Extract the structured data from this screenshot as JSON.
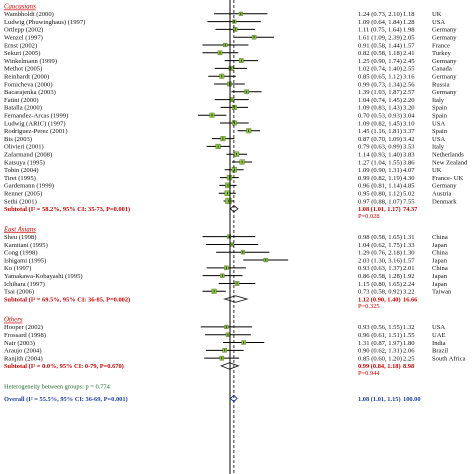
{
  "colors": {
    "header": "#cc0000",
    "subtotal": "#cc0000",
    "heterogeneity": "#1a6b2a",
    "overall": "#1f3fa0",
    "marker": "#8dc63f",
    "line": "#000000"
  },
  "chart_data": {
    "type": "forest",
    "axis": {
      "scale": "log",
      "xlim": [
        0.25,
        4.0
      ],
      "reference": 1.0,
      "summary_line": 1.08
    },
    "groups": [
      {
        "name": "Caucasians",
        "studies": [
          {
            "study": "Wambholdt (2000)",
            "es": 1.24,
            "lo": 0.73,
            "hi": 2.1,
            "ci": "1.24 (0.73, 2.10)",
            "weight": "1.18",
            "country": "UK"
          },
          {
            "study": "Ludwig (Phuwinghaus) (1997)",
            "es": 1.09,
            "lo": 0.64,
            "hi": 1.84,
            "ci": "1.09 (0.64, 1.84)",
            "weight": "1.28",
            "country": "USA"
          },
          {
            "study": "Ortlepp (2002)",
            "es": 1.11,
            "lo": 0.75,
            "hi": 1.64,
            "ci": "1.11 (0.75, 1.64)",
            "weight": "1.98",
            "country": "Germany"
          },
          {
            "study": "Wenzel (1997)",
            "es": 1.61,
            "lo": 1.09,
            "hi": 2.39,
            "ci": "1.61 (1.09, 2.39)",
            "weight": "2.05",
            "country": "Germany"
          },
          {
            "study": "Ernst (2002)",
            "es": 0.91,
            "lo": 0.58,
            "hi": 1.44,
            "ci": "0.91 (0.58, 1.44)",
            "weight": "1.57",
            "country": "France"
          },
          {
            "study": "Sekuri (2005)",
            "es": 0.82,
            "lo": 0.58,
            "hi": 1.18,
            "ci": "0.82 (0.58, 1.18)",
            "weight": "2.41",
            "country": "Turkey"
          },
          {
            "study": "Winkelmann (1999)",
            "es": 1.25,
            "lo": 0.9,
            "hi": 1.74,
            "ci": "1.25 (0.90, 1.74)",
            "weight": "2.45",
            "country": "Germany"
          },
          {
            "study": "Methot (2005)",
            "es": 1.02,
            "lo": 0.74,
            "hi": 1.4,
            "ci": "1.02 (0.74, 1.40)",
            "weight": "2.55",
            "country": "Canada"
          },
          {
            "study": "Reinhardt (2000)",
            "es": 0.85,
            "lo": 0.65,
            "hi": 1.12,
            "ci": "0.85 (0.65, 1.12)",
            "weight": "3.16",
            "country": "Germany"
          },
          {
            "study": "Fomicheva (2000)",
            "es": 0.99,
            "lo": 0.73,
            "hi": 1.34,
            "ci": "0.99 (0.73, 1.34)",
            "weight": "2.56",
            "country": "Russia"
          },
          {
            "study": "Bacarajenka (2003)",
            "es": 1.39,
            "lo": 1.03,
            "hi": 1.87,
            "ci": "1.39 (1.03, 1.87)",
            "weight": "2.57",
            "country": "Germany"
          },
          {
            "study": "Fatini (2000)",
            "es": 1.04,
            "lo": 0.74,
            "hi": 1.45,
            "ci": "1.04 (0.74, 1.45)",
            "weight": "2.20",
            "country": "Italy"
          },
          {
            "study": "Batalla (2000)",
            "es": 1.09,
            "lo": 0.83,
            "hi": 1.43,
            "ci": "1.09 (0.83, 1.43)",
            "weight": "3.20",
            "country": "Spain"
          },
          {
            "study": "Fernandez-Arcas (1999)",
            "es": 0.7,
            "lo": 0.53,
            "hi": 0.93,
            "ci": "0.70 (0.53, 0.93)",
            "weight": "3.04",
            "country": "Spain"
          },
          {
            "study": "Ludwig (ARIC) (1997)",
            "es": 1.09,
            "lo": 0.82,
            "hi": 1.45,
            "ci": "1.09 (0.82, 1.45)",
            "weight": "3.10",
            "country": "USA"
          },
          {
            "study": "Rodriguez-Perez (2001)",
            "es": 1.45,
            "lo": 1.16,
            "hi": 1.81,
            "ci": "1.45 (1.16, 1.81)",
            "weight": "3.37",
            "country": "Spain"
          },
          {
            "study": "Bis (2003)",
            "es": 0.87,
            "lo": 0.7,
            "hi": 1.09,
            "ci": "0.87 (0.70, 1.09)",
            "weight": "3.42",
            "country": "USA"
          },
          {
            "study": "Olivieri (2001)",
            "es": 0.79,
            "lo": 0.63,
            "hi": 0.99,
            "ci": "0.79 (0.63, 0.99)",
            "weight": "3.53",
            "country": "Italy"
          },
          {
            "study": "Zafarmand (2008)",
            "es": 1.14,
            "lo": 0.93,
            "hi": 1.4,
            "ci": "1.14 (0.93, 1.40)",
            "weight": "3.83",
            "country": "Netherlands"
          },
          {
            "study": "Katsuya (1995)",
            "es": 1.27,
            "lo": 1.04,
            "hi": 1.55,
            "ci": "1.27 (1.04, 1.55)",
            "weight": "3.86",
            "country": "New Zealand"
          },
          {
            "study": "Tobin (2004)",
            "es": 1.09,
            "lo": 0.9,
            "hi": 1.31,
            "ci": "1.09 (0.90, 1.31)",
            "weight": "4.07",
            "country": "UK"
          },
          {
            "study": "Tiret (1995)",
            "es": 0.99,
            "lo": 0.82,
            "hi": 1.19,
            "ci": "0.99 (0.82, 1.19)",
            "weight": "4.30",
            "country": "France- UK"
          },
          {
            "study": "Gardemann (1999)",
            "es": 0.96,
            "lo": 0.81,
            "hi": 1.14,
            "ci": "0.96 (0.81, 1.14)",
            "weight": "4.85",
            "country": "Germany"
          },
          {
            "study": "Renner (2005)",
            "es": 0.95,
            "lo": 0.8,
            "hi": 1.12,
            "ci": "0.95 (0.80, 1.12)",
            "weight": "5.02",
            "country": "Austria"
          },
          {
            "study": "Sethi (2001)",
            "es": 0.97,
            "lo": 0.88,
            "hi": 1.07,
            "ci": "0.97 (0.88, 1.07)",
            "weight": "7.55",
            "country": "Denmark"
          }
        ],
        "subtotal": {
          "label": "Subtotal (I² = 58.2%, 95% CI: 35-73, P=0.001)",
          "es": 1.08,
          "lo": 1.01,
          "hi": 1.17,
          "ci": "1.08 (1.01, 1.17)",
          "weight": "74.37",
          "p": "P=0.028"
        }
      },
      {
        "name": "East Asians",
        "studies": [
          {
            "study": "Sheu (1998)",
            "es": 0.98,
            "lo": 0.58,
            "hi": 1.65,
            "ci": "0.98 (0.58, 1.65)",
            "weight": "1.31",
            "country": "China"
          },
          {
            "study": "Kamitani (1995)",
            "es": 1.04,
            "lo": 0.62,
            "hi": 1.75,
            "ci": "1.04 (0.62, 1.75)",
            "weight": "1.33",
            "country": "Japan"
          },
          {
            "study": "Cong (1998)",
            "es": 1.29,
            "lo": 0.76,
            "hi": 2.18,
            "ci": "1.29 (0.76, 2.18)",
            "weight": "1.30",
            "country": "China"
          },
          {
            "study": "Ishigami (1995)",
            "es": 2.03,
            "lo": 1.3,
            "hi": 3.16,
            "ci": "2.03 (1.30, 3.16)",
            "weight": "1.57",
            "country": "Japan"
          },
          {
            "study": "Ko (1997)",
            "es": 0.93,
            "lo": 0.63,
            "hi": 1.37,
            "ci": "0.93 (0.63, 1.37)",
            "weight": "2.01",
            "country": "China"
          },
          {
            "study": "Yamakawa-Kobayashi (1995)",
            "es": 0.86,
            "lo": 0.58,
            "hi": 1.28,
            "ci": "0.86 (0.58, 1.28)",
            "weight": "1.92",
            "country": "Japan"
          },
          {
            "study": "Ichihara (1997)",
            "es": 1.15,
            "lo": 0.8,
            "hi": 1.65,
            "ci": "1.15 (0.80, 1.65)",
            "weight": "2.24",
            "country": "Japan"
          },
          {
            "study": "Tsai (2006)",
            "es": 0.73,
            "lo": 0.58,
            "hi": 0.92,
            "ci": "0.73 (0.58, 0.92)",
            "weight": "3.22",
            "country": "Taiwan"
          }
        ],
        "subtotal": {
          "label": "Subtotal (I² = 69.5%, 95% CI: 36-85, P=0.002)",
          "es": 1.12,
          "lo": 0.9,
          "hi": 1.4,
          "ci": "1.12 (0.90, 1.40)",
          "weight": "16.66",
          "p": "P=0.325"
        }
      },
      {
        "name": "Others",
        "studies": [
          {
            "study": "Hooper (2002)",
            "es": 0.93,
            "lo": 0.56,
            "hi": 1.55,
            "ci": "0.93 (0.56, 1.55)",
            "weight": "1.32",
            "country": "USA"
          },
          {
            "study": "Frossard (1998)",
            "es": 0.96,
            "lo": 0.61,
            "hi": 1.51,
            "ci": "0.96 (0.61, 1.51)",
            "weight": "1.55",
            "country": "UAE"
          },
          {
            "study": "Nair (2003)",
            "es": 1.31,
            "lo": 0.87,
            "hi": 1.97,
            "ci": "1.31 (0.87, 1.97)",
            "weight": "1.80",
            "country": "India"
          },
          {
            "study": "Araujo (2004)",
            "es": 0.9,
            "lo": 0.62,
            "hi": 1.31,
            "ci": "0.90 (0.62, 1.31)",
            "weight": "2.06",
            "country": "Brazil"
          },
          {
            "study": "Ranjith (2004)",
            "es": 0.85,
            "lo": 0.6,
            "hi": 1.2,
            "ci": "0.85 (0.60, 1.20)",
            "weight": "2.25",
            "country": "South Africa"
          }
        ],
        "subtotal": {
          "label": "Subtotal (I² = 0.0%, 95% CI: 0-79, P=0.670)",
          "es": 0.99,
          "lo": 0.84,
          "hi": 1.18,
          "ci": "0.99 (0.84, 1.18)",
          "weight": "8.98",
          "p": "P=0.944"
        }
      }
    ],
    "heterogeneity": "Heterogeneity between groups: p = 0.774",
    "overall": {
      "label": "Overall (I² = 55.5%, 95% CI: 36-69, P=0.001)",
      "es": 1.08,
      "lo": 1.01,
      "hi": 1.15,
      "ci": "1.08 (1.01, 1.15)",
      "weight": "100.00"
    }
  }
}
